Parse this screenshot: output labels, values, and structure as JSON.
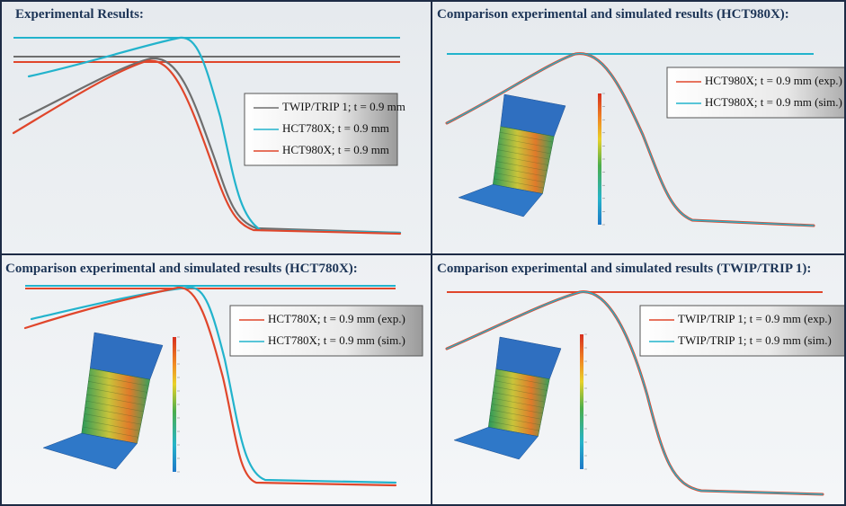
{
  "panels": [
    {
      "title": "Experimental Results:",
      "legend": [
        "TWIP/TRIP 1; t = 0.9 mm",
        "HCT780X; t = 0.9 mm",
        "HCT980X; t = 0.9 mm"
      ]
    },
    {
      "title": "Comparison experimental and simulated results (HCT980X):",
      "legend": [
        "HCT980X; t = 0.9 mm (exp.)",
        "HCT980X; t = 0.9 mm (sim.)"
      ]
    },
    {
      "title": "Comparison experimental and simulated results (HCT780X):",
      "legend": [
        "HCT780X; t = 0.9 mm (exp.)",
        "HCT780X; t = 0.9 mm (sim.)"
      ]
    },
    {
      "title": "Comparison experimental and simulated results (TWIP/TRIP 1):",
      "legend": [
        "TWIP/TRIP 1; t = 0.9 mm (exp.)",
        "TWIP/TRIP 1; t = 0.9 mm (sim.)"
      ]
    }
  ]
}
